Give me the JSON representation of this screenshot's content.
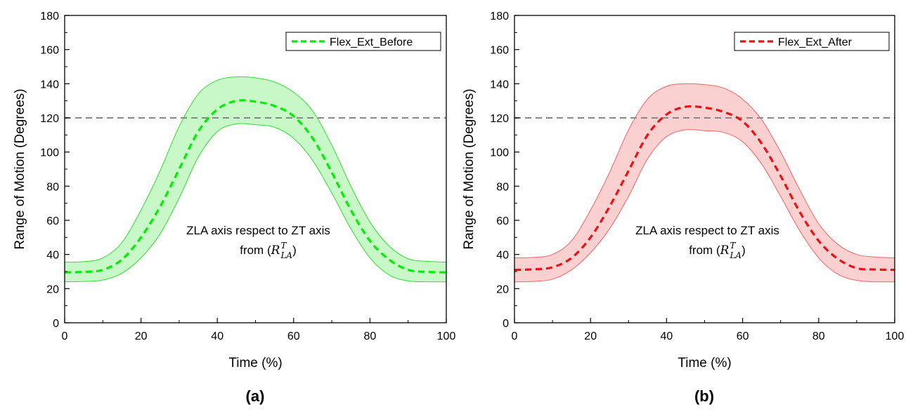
{
  "chart_data": [
    {
      "type": "line",
      "panel_label": "(a)",
      "xlabel": "Time (%)",
      "ylabel": "Range of Motion (Degrees)",
      "xlim": [
        0,
        100
      ],
      "ylim": [
        0,
        180
      ],
      "xticks": [
        0,
        20,
        40,
        60,
        80,
        100
      ],
      "yticks": [
        0,
        20,
        40,
        60,
        80,
        100,
        120,
        140,
        160,
        180
      ],
      "reference_line": 120,
      "grid": false,
      "legend": {
        "label": "Flex_Ext_Before",
        "position": "top-right"
      },
      "annotation": {
        "line1": "ZLA axis respect to ZT axis",
        "line2_prefix": "from ",
        "math_base": "R",
        "math_sup": "T",
        "math_sub": "LA"
      },
      "colors": {
        "line": "#00ee00",
        "band_fill": "#c8f7c8",
        "band_edge": "#33dd33",
        "ref": "#888888"
      },
      "series": [
        {
          "name": "Flex_Ext_Before",
          "x": [
            0,
            5,
            10,
            15,
            20,
            25,
            30,
            35,
            40,
            45,
            50,
            55,
            60,
            65,
            70,
            75,
            80,
            85,
            90,
            95,
            100
          ],
          "mean": [
            29.5,
            29.8,
            31,
            37,
            50,
            68,
            90,
            112,
            125,
            130,
            129.5,
            127,
            121,
            108,
            88,
            66,
            48,
            37,
            31,
            29.8,
            29.5
          ],
          "upper": [
            35.5,
            35.8,
            38,
            47,
            66,
            89,
            115,
            134,
            142,
            144,
            143.5,
            141,
            135,
            124,
            104,
            80,
            59,
            45,
            37.5,
            36,
            35.5
          ],
          "lower": [
            24,
            24.2,
            25,
            29,
            38,
            52,
            73,
            97,
            112,
            116.5,
            116,
            114.5,
            108,
            95,
            76,
            55,
            38,
            28,
            24.5,
            24,
            24
          ]
        }
      ]
    },
    {
      "type": "line",
      "panel_label": "(b)",
      "xlabel": "Time (%)",
      "ylabel": "Range of Motion (Degrees)",
      "xlim": [
        0,
        100
      ],
      "ylim": [
        0,
        180
      ],
      "xticks": [
        0,
        20,
        40,
        60,
        80,
        100
      ],
      "yticks": [
        0,
        20,
        40,
        60,
        80,
        100,
        120,
        140,
        160,
        180
      ],
      "reference_line": 120,
      "grid": false,
      "legend": {
        "label": "Flex_Ext_After",
        "position": "top-right"
      },
      "annotation": {
        "line1": "ZLA axis respect to ZT axis",
        "line2_prefix": "from ",
        "math_base": "R",
        "math_sup": "T",
        "math_sub": "LA"
      },
      "colors": {
        "line": "#ee1111",
        "band_fill": "#fbd0d0",
        "band_edge": "#ee6666",
        "ref": "#888888"
      },
      "series": [
        {
          "name": "Flex_Ext_After",
          "x": [
            0,
            5,
            10,
            15,
            20,
            25,
            30,
            35,
            40,
            45,
            50,
            55,
            60,
            65,
            70,
            75,
            80,
            85,
            90,
            95,
            100
          ],
          "mean": [
            31,
            31.3,
            32.5,
            38,
            50,
            68,
            89,
            110,
            122,
            126.5,
            126,
            123.5,
            118,
            105,
            86,
            65,
            48,
            37.5,
            32,
            31.2,
            31
          ],
          "upper": [
            38,
            38.3,
            40,
            48,
            66,
            88,
            113,
            131,
            138.5,
            140,
            139.5,
            137.5,
            131,
            119,
            100,
            78,
            58,
            46,
            40,
            38.5,
            38
          ],
          "lower": [
            24,
            24.2,
            25.5,
            31,
            41,
            55,
            74,
            96,
            109,
            113,
            112.5,
            111.5,
            106,
            93,
            74,
            54,
            38,
            28.5,
            24.8,
            24,
            24
          ]
        }
      ]
    }
  ]
}
